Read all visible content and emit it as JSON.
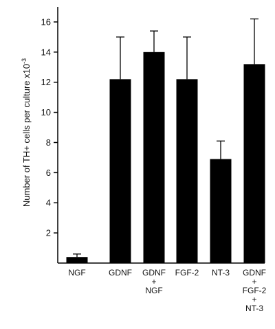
{
  "chart_data": {
    "type": "bar",
    "categories": [
      [
        "NGF"
      ],
      [
        "GDNF"
      ],
      [
        "GDNF",
        "+",
        "NGF"
      ],
      [
        "FGF-2"
      ],
      [
        "NT-3"
      ],
      [
        "GDNF",
        "+",
        "FGF-2",
        "+",
        "NT-3"
      ]
    ],
    "values": [
      0.4,
      12.2,
      14.0,
      12.2,
      6.9,
      13.2
    ],
    "error_upper": [
      0.6,
      15.0,
      15.4,
      15.0,
      8.1,
      16.2
    ],
    "title": "",
    "xlabel": "",
    "ylabel": "Number of TH+ cells per culture x10",
    "ylabel_exponent": "-3",
    "ylim": [
      0,
      17
    ],
    "yticks": [
      2,
      4,
      6,
      8,
      10,
      12,
      14,
      16
    ],
    "grid": false,
    "bar_color": "#000000"
  }
}
